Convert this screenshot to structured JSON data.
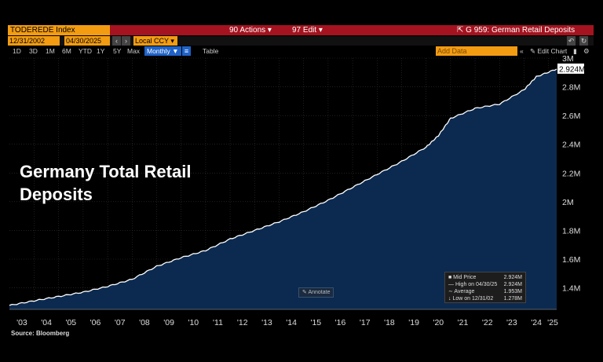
{
  "toolbar": {
    "ticker": "TODEREDE Index",
    "actions": "90 Actions",
    "edit": "97 Edit",
    "chart_id": "G 959: German Retail Deposits"
  },
  "controls": {
    "start_date": "12/31/2002",
    "end_date": "04/30/2025",
    "currency": "Local CCY",
    "ranges": [
      "1D",
      "3D",
      "1M",
      "6M",
      "YTD",
      "1Y",
      "5Y",
      "Max"
    ],
    "frequency": "Monthly",
    "table_label": "Table",
    "add_data": "Add Data",
    "edit_chart": "Edit Chart"
  },
  "overlay": {
    "title_line1": "Germany Total Retail",
    "title_line2": "Deposits"
  },
  "legend": {
    "rows": [
      {
        "label": "Mid Price",
        "value": "2.924M"
      },
      {
        "label": "High on 04/30/25",
        "value": "2.924M"
      },
      {
        "label": "Average",
        "value": "1.953M"
      },
      {
        "label": "Low on 12/31/02",
        "value": "1.278M"
      }
    ]
  },
  "annotate_label": "Annotate",
  "source": "Source: Bloomberg",
  "colors": {
    "line": "#ffffff",
    "area": "#0c2a4f",
    "accent_orange": "#f39c12",
    "toolbar_red": "#a4131f"
  },
  "chart_data": {
    "type": "area",
    "x_tick_labels": [
      "'03",
      "'04",
      "'05",
      "'06",
      "'07",
      "'08",
      "'09",
      "'10",
      "'11",
      "'12",
      "'13",
      "'14",
      "'15",
      "'16",
      "'17",
      "'18",
      "'19",
      "'20",
      "'21",
      "'22",
      "'23",
      "'24",
      "'25"
    ],
    "y_tick_labels": [
      "1.4M",
      "1.6M",
      "1.8M",
      "2M",
      "2.2M",
      "2.4M",
      "2.6M",
      "2.8M",
      "3M"
    ],
    "ylim": [
      1.25,
      3.0
    ],
    "last_value_label": "2.924M",
    "series": [
      {
        "values_in_millions": [
          {
            "x": 2002.99,
            "y": 1.278
          },
          {
            "x": 2004.0,
            "y": 1.31
          },
          {
            "x": 2005.0,
            "y": 1.34
          },
          {
            "x": 2006.0,
            "y": 1.37
          },
          {
            "x": 2007.0,
            "y": 1.41
          },
          {
            "x": 2008.0,
            "y": 1.46
          },
          {
            "x": 2009.0,
            "y": 1.55
          },
          {
            "x": 2010.0,
            "y": 1.61
          },
          {
            "x": 2011.0,
            "y": 1.66
          },
          {
            "x": 2012.0,
            "y": 1.74
          },
          {
            "x": 2013.0,
            "y": 1.8
          },
          {
            "x": 2014.0,
            "y": 1.86
          },
          {
            "x": 2015.0,
            "y": 1.93
          },
          {
            "x": 2016.0,
            "y": 2.01
          },
          {
            "x": 2017.0,
            "y": 2.1
          },
          {
            "x": 2018.0,
            "y": 2.19
          },
          {
            "x": 2019.0,
            "y": 2.28
          },
          {
            "x": 2020.0,
            "y": 2.38
          },
          {
            "x": 2020.5,
            "y": 2.46
          },
          {
            "x": 2021.0,
            "y": 2.58
          },
          {
            "x": 2022.0,
            "y": 2.65
          },
          {
            "x": 2023.0,
            "y": 2.68
          },
          {
            "x": 2024.0,
            "y": 2.78
          },
          {
            "x": 2024.5,
            "y": 2.87
          },
          {
            "x": 2025.33,
            "y": 2.924
          }
        ]
      }
    ]
  }
}
